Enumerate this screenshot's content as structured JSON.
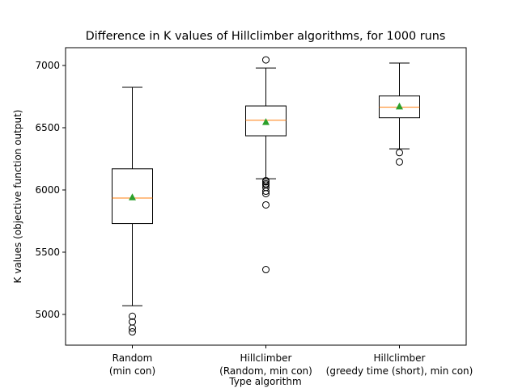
{
  "chart_data": {
    "type": "box",
    "title": "Difference in K values of Hillclimber algorithms, for 1000 runs",
    "xlabel": "Type algorithm",
    "ylabel": "K values (objective function output)",
    "categories": [
      "Random\n(min con)",
      "Hillclimber\n(Random, min con)",
      "Hillclimber\n(greedy time (short), min con)"
    ],
    "boxes": [
      {
        "whislo": 5070,
        "q1": 5730,
        "med": 5935,
        "q3": 6170,
        "whishi": 6825,
        "mean": 5940,
        "fliers": [
          4985,
          4940,
          4890,
          4860
        ]
      },
      {
        "whislo": 6090,
        "q1": 6435,
        "med": 6560,
        "q3": 6675,
        "whishi": 6980,
        "mean": 6545,
        "fliers": [
          7045,
          6075,
          6065,
          6050,
          6040,
          6020,
          5990,
          5970,
          5880,
          5360
        ]
      },
      {
        "whislo": 6330,
        "q1": 6580,
        "med": 6665,
        "q3": 6755,
        "whishi": 7020,
        "mean": 6670,
        "fliers": [
          6300,
          6225
        ]
      }
    ],
    "median_color": "#ff7f0e",
    "mean_color": "#2ca02c",
    "ylim": [
      4753,
      7143
    ],
    "yticks": [
      5000,
      5500,
      6000,
      6500,
      7000
    ]
  }
}
